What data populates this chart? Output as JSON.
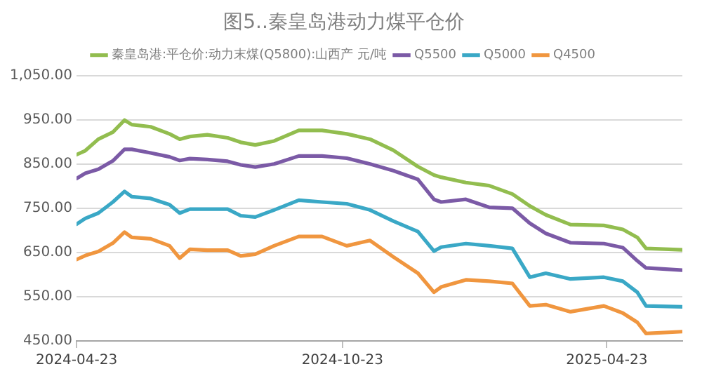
{
  "chart_data": {
    "type": "line",
    "title": "图5..秦皇岛港动力煤平仓价",
    "x": [
      "2024-04-23",
      "2024-04-29",
      "2024-05-08",
      "2024-05-18",
      "2024-05-26",
      "2024-05-31",
      "2024-06-13",
      "2024-06-26",
      "2024-07-03",
      "2024-07-10",
      "2024-07-22",
      "2024-08-05",
      "2024-08-14",
      "2024-08-24",
      "2024-09-06",
      "2024-09-23",
      "2024-10-09",
      "2024-10-26",
      "2024-11-11",
      "2024-11-27",
      "2024-12-14",
      "2024-12-25",
      "2024-12-30",
      "2025-01-16",
      "2025-02-01",
      "2025-02-17",
      "2025-03-01",
      "2025-03-12",
      "2025-03-29",
      "2025-04-21",
      "2025-05-04",
      "2025-05-14",
      "2025-05-20",
      "2025-06-14"
    ],
    "series": [
      {
        "name": "秦皇岛港:平仓价:动力末煤(Q5800):山西产 元/吨",
        "color": "#92bd4f",
        "values": [
          871,
          880,
          906,
          922,
          949,
          939,
          934,
          918,
          906,
          912,
          916,
          909,
          899,
          893,
          902,
          926,
          926,
          918,
          906,
          881,
          844,
          825,
          820,
          808,
          801,
          782,
          755,
          735,
          713,
          711,
          702,
          684,
          659,
          656
        ]
      },
      {
        "name": "Q5500",
        "color": "#7b5aa6",
        "values": [
          817,
          829,
          838,
          857,
          883,
          883,
          875,
          866,
          858,
          862,
          860,
          856,
          848,
          843,
          850,
          868,
          868,
          863,
          850,
          835,
          815,
          770,
          764,
          770,
          752,
          750,
          716,
          693,
          672,
          670,
          661,
          631,
          615,
          610
        ]
      },
      {
        "name": "Q5000",
        "color": "#3aa8c6",
        "values": [
          714,
          727,
          739,
          764,
          788,
          776,
          772,
          758,
          739,
          748,
          748,
          748,
          733,
          730,
          746,
          768,
          764,
          760,
          746,
          721,
          697,
          653,
          662,
          670,
          665,
          659,
          594,
          603,
          590,
          594,
          585,
          560,
          529,
          527
        ]
      },
      {
        "name": "Q4500",
        "color": "#f0963f",
        "values": [
          634,
          643,
          652,
          671,
          696,
          684,
          681,
          665,
          637,
          657,
          655,
          655,
          642,
          646,
          665,
          686,
          686,
          665,
          677,
          640,
          603,
          560,
          572,
          588,
          585,
          580,
          529,
          532,
          516,
          529,
          513,
          492,
          467,
          471
        ]
      }
    ],
    "xlim": [
      "2024-04-23",
      "2025-06-14"
    ],
    "xticks": [
      "2024-04-23",
      "2024-10-23",
      "2025-04-23"
    ],
    "ylim": [
      450,
      1050
    ],
    "yticks": [
      {
        "value": 450,
        "label": "450.00"
      },
      {
        "value": 550,
        "label": "550.00"
      },
      {
        "value": 650,
        "label": "650.00"
      },
      {
        "value": 750,
        "label": "750.00"
      },
      {
        "value": 850,
        "label": "850.00"
      },
      {
        "value": 950,
        "label": "950.00"
      },
      {
        "value": 1050,
        "label": "1,050.00"
      }
    ],
    "grid": "y",
    "legend": "top",
    "marker": "none",
    "line_style": "solid"
  }
}
